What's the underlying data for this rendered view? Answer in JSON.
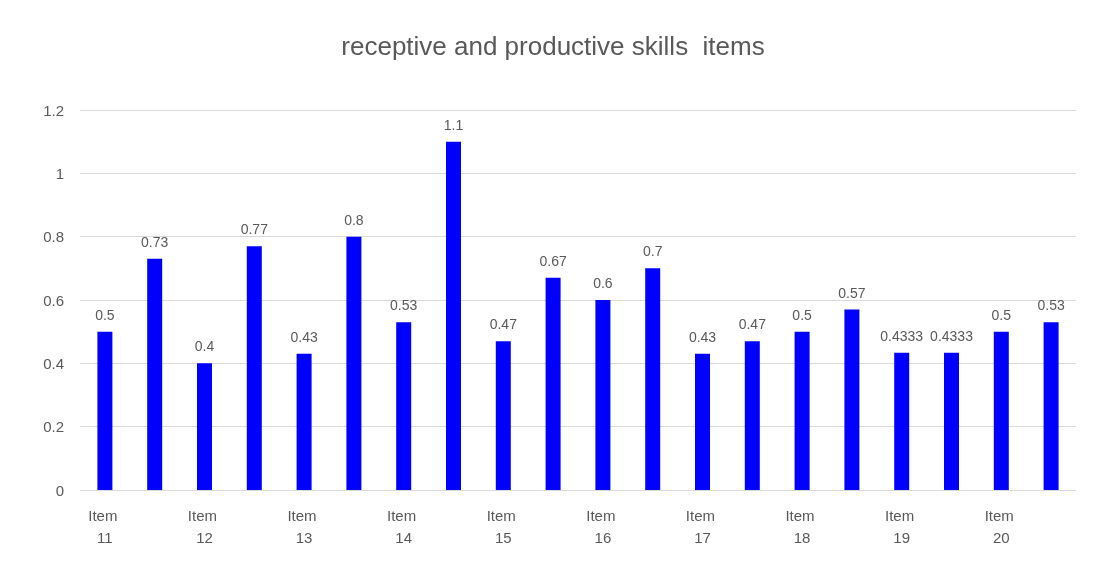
{
  "chart_data": {
    "type": "bar",
    "title": "receptive and productive skills  items",
    "categories": [
      "Item 11",
      null,
      "Item 12",
      null,
      "Item 13",
      null,
      "Item 14",
      null,
      "Item 15",
      null,
      "Item 16",
      null,
      "Item 17",
      null,
      "Item 18",
      null,
      "Item 19",
      null,
      "Item 20",
      null
    ],
    "values": [
      0.5,
      0.73,
      0.4,
      0.77,
      0.43,
      0.8,
      0.53,
      1.1,
      0.47,
      0.67,
      0.6,
      0.7,
      0.43,
      0.47,
      0.5,
      0.57,
      0.4333,
      0.4333,
      0.5,
      0.53
    ],
    "color": "#0000ff",
    "ylim": [
      0,
      1.2
    ],
    "yticks": [
      0,
      0.2,
      0.4,
      0.6,
      0.8,
      1,
      1.2
    ],
    "grid": "y",
    "data_labels": true
  }
}
